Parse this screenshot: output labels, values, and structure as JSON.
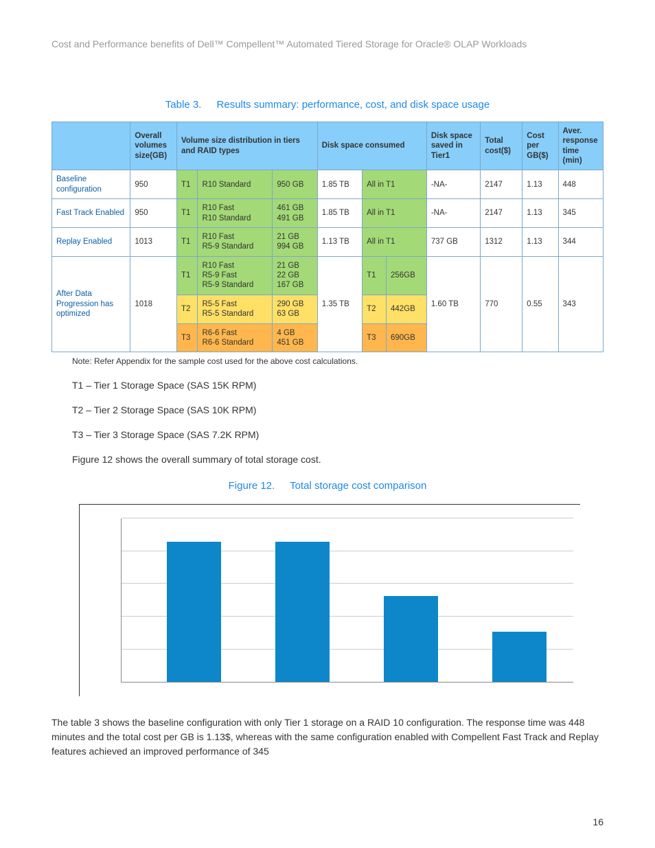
{
  "doc_title": "Cost and Performance benefits of Dell™ Compellent™ Automated Tiered Storage for Oracle® OLAP Workloads",
  "table_caption_num": "Table 3.",
  "table_caption_text": "Results summary: performance, cost, and disk space usage",
  "headers": {
    "overall": "Overall volumes size(GB)",
    "vol_dist": "Volume size distribution in tiers and RAID types",
    "disk_cons": "Disk space consumed",
    "disk_saved": "Disk space saved in Tier1",
    "total_cost": "Total cost($)",
    "cost_gb": "Cost per GB($)",
    "avg_resp": "Aver. response time (min)"
  },
  "rows": {
    "baseline": {
      "label": "Baseline configuration",
      "overall": "950",
      "tier": "T1",
      "raid": "R10 Standard",
      "vol": "950 GB",
      "consumed": "1.85 TB",
      "consumed_detail": "All in T1",
      "saved": "-NA-",
      "cost": "2147",
      "cost_gb": "1.13",
      "resp": "448"
    },
    "fasttrack": {
      "label": "Fast Track Enabled",
      "overall": "950",
      "tier": "T1",
      "raid": "R10 Fast\nR10 Standard",
      "vol": "461 GB\n491 GB",
      "consumed": "1.85 TB",
      "consumed_detail": "All in T1",
      "saved": "-NA-",
      "cost": "2147",
      "cost_gb": "1.13",
      "resp": "345"
    },
    "replay": {
      "label": "Replay Enabled",
      "overall": "1013",
      "tier": "T1",
      "raid": "R10 Fast\nR5-9 Standard",
      "vol": "21 GB\n994 GB",
      "consumed": "1.13 TB",
      "consumed_detail": "All in T1",
      "saved": "737 GB",
      "cost": "1312",
      "cost_gb": "1.13",
      "resp": "344"
    },
    "afterdp": {
      "label": "After Data Progression has optimized",
      "overall": "1018",
      "t1_raid": "R10 Fast\nR5-9 Fast\nR5-9 Standard",
      "t1_vol": "21 GB\n22 GB\n167 GB",
      "t2_raid": "R5-5 Fast\nR5-5 Standard",
      "t2_vol": "290 GB\n63 GB",
      "t3_raid": "R6-6 Fast\nR6-6 Standard",
      "t3_vol": "4 GB\n451 GB",
      "consumed": "1.35 TB",
      "cons_t1_l": "T1",
      "cons_t1_v": "256GB",
      "cons_t2_l": "T2",
      "cons_t2_v": "442GB",
      "cons_t3_l": "T3",
      "cons_t3_v": "690GB",
      "saved": "1.60 TB",
      "cost": "770",
      "cost_gb": "0.55",
      "resp": "343"
    }
  },
  "tier_labels": {
    "t1": "T1",
    "t2": "T2",
    "t3": "T3"
  },
  "note": "Note: Refer Appendix for the sample cost used for the above cost calculations.",
  "legend": {
    "t1": "T1 – Tier 1 Storage Space (SAS 15K RPM)",
    "t2": "T2 – Tier 2 Storage Space (SAS 10K RPM)",
    "t3": "T3 – Tier 3 Storage Space (SAS 7.2K RPM)"
  },
  "fig_intro": "Figure 12 shows the overall summary of total storage cost.",
  "fig_caption_num": "Figure 12.",
  "fig_caption_text": "Total storage cost comparison",
  "chart": {
    "type": "bar",
    "values": [
      2147,
      2147,
      1312,
      770
    ],
    "ymax": 2500,
    "ytick_step": 500,
    "bar_color": "#0d87c9",
    "grid_color": "#cccccc",
    "bar_width_pct": 12,
    "bar_positions_pct": [
      10,
      34,
      58,
      82
    ]
  },
  "closing_para": "The table 3 shows the baseline configuration with only Tier 1 storage on a RAID 10 configuration. The response time was 448 minutes and the total cost per GB is 1.13$, whereas with the same configuration enabled with Compellent Fast Track and Replay features achieved an improved performance of 345",
  "page_number": "16",
  "colors": {
    "header_bg": "#87cefa",
    "tier_green": "#a3d977",
    "tier_yellow": "#ffe066",
    "tier_orange": "#ffb74d",
    "caption": "#1e88e5"
  }
}
